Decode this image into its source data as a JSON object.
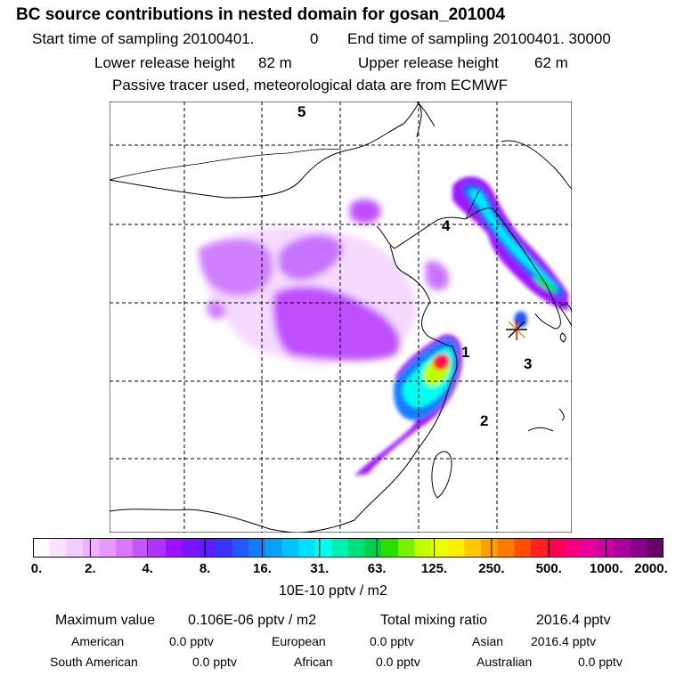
{
  "header": {
    "title": "BC  source contributions in nested domain for gosan_201004",
    "start_label": "Start time of sampling 20100401.",
    "start_value": "0",
    "end_label": "End time of sampling 20100401. 30000",
    "lower_label": "Lower release height",
    "lower_value": "82 m",
    "upper_label": "Upper release height",
    "upper_value": "62 m",
    "tracer_note": "Passive tracer used, meteorological data are from ECMWF"
  },
  "map": {
    "region_labels": [
      "1",
      "2",
      "3",
      "4",
      "5"
    ],
    "receptor_marker": "receptor-star"
  },
  "colorbar": {
    "unit": "10E-10 pptv / m2",
    "tick_labels": [
      "0.",
      "2.",
      "4.",
      "8.",
      "16.",
      "31.",
      "63.",
      "125.",
      "250.",
      "500.",
      "1000.",
      "2000."
    ],
    "colors": [
      "#ffffff",
      "#fbe3ff",
      "#f5ccff",
      "#eeb3ff",
      "#e699ff",
      "#d877ff",
      "#c555ff",
      "#b032ff",
      "#9c12ff",
      "#7a14ff",
      "#5a1eff",
      "#3a33ff",
      "#2457ff",
      "#137dff",
      "#08a0ff",
      "#04c2ff",
      "#00e0ff",
      "#00fff0",
      "#00f0b4",
      "#00e07a",
      "#00d048",
      "#28e000",
      "#78f000",
      "#c0ff00",
      "#eaff00",
      "#ffee00",
      "#ffc800",
      "#ffa000",
      "#ff7a00",
      "#ff4e00",
      "#ff2020",
      "#ff0050",
      "#f5007a",
      "#e6009c",
      "#cc00a5",
      "#aa00a0",
      "#8a0088",
      "#6a006a"
    ]
  },
  "footer": {
    "max_label": "Maximum value",
    "max_value": "0.106E-06 pptv / m2",
    "total_label": "Total mixing ratio",
    "total_value": "2016.4 pptv",
    "rows": [
      [
        {
          "name": "American",
          "value": "0.0 pptv"
        },
        {
          "name": "European",
          "value": "0.0 pptv"
        },
        {
          "name": "Asian",
          "value": "2016.4 pptv"
        }
      ],
      [
        {
          "name": "South American",
          "value": "0.0 pptv"
        },
        {
          "name": "African",
          "value": "0.0 pptv"
        },
        {
          "name": "Australian",
          "value": "0.0 pptv"
        }
      ]
    ]
  }
}
